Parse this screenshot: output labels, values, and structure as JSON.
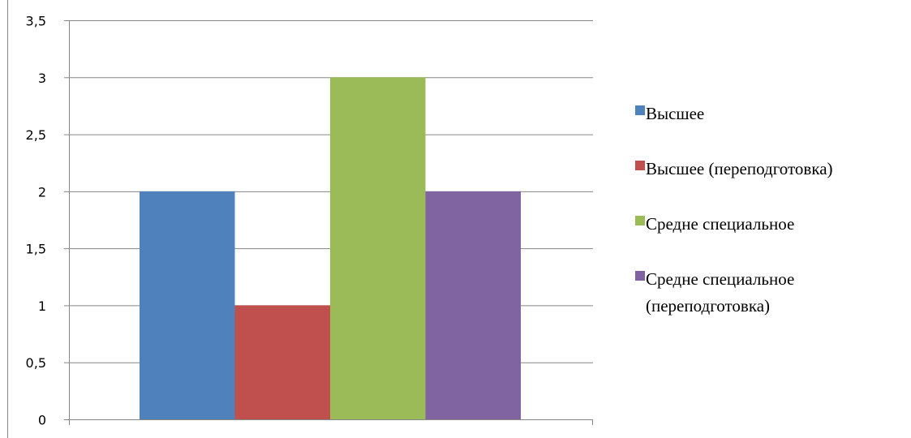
{
  "chart_data": {
    "type": "bar",
    "categories": [
      ""
    ],
    "series": [
      {
        "name": "Высшее",
        "values": [
          2
        ],
        "color": "#4F81BD"
      },
      {
        "name": "Высшее (переподготовка)",
        "values": [
          1
        ],
        "color": "#C0504D"
      },
      {
        "name": "Средне специальное",
        "values": [
          3
        ],
        "color": "#9BBB59"
      },
      {
        "name": "Средне специальное (переподготовка)",
        "values": [
          2
        ],
        "color": "#8064A2"
      }
    ],
    "y_ticks": [
      "0",
      "0,5",
      "1",
      "1,5",
      "2",
      "2,5",
      "3",
      "3,5"
    ],
    "ylim": [
      0,
      3.5
    ],
    "y_step": 0.5,
    "grid": true,
    "legend_position": "right",
    "legend_lines": [
      [
        "Высшее"
      ],
      [
        "Высшее (переподготовка)"
      ],
      [
        "Средне специальное"
      ],
      [
        "Средне специальное",
        "(переподготовка)"
      ]
    ],
    "title": "",
    "xlabel": "",
    "ylabel": ""
  }
}
